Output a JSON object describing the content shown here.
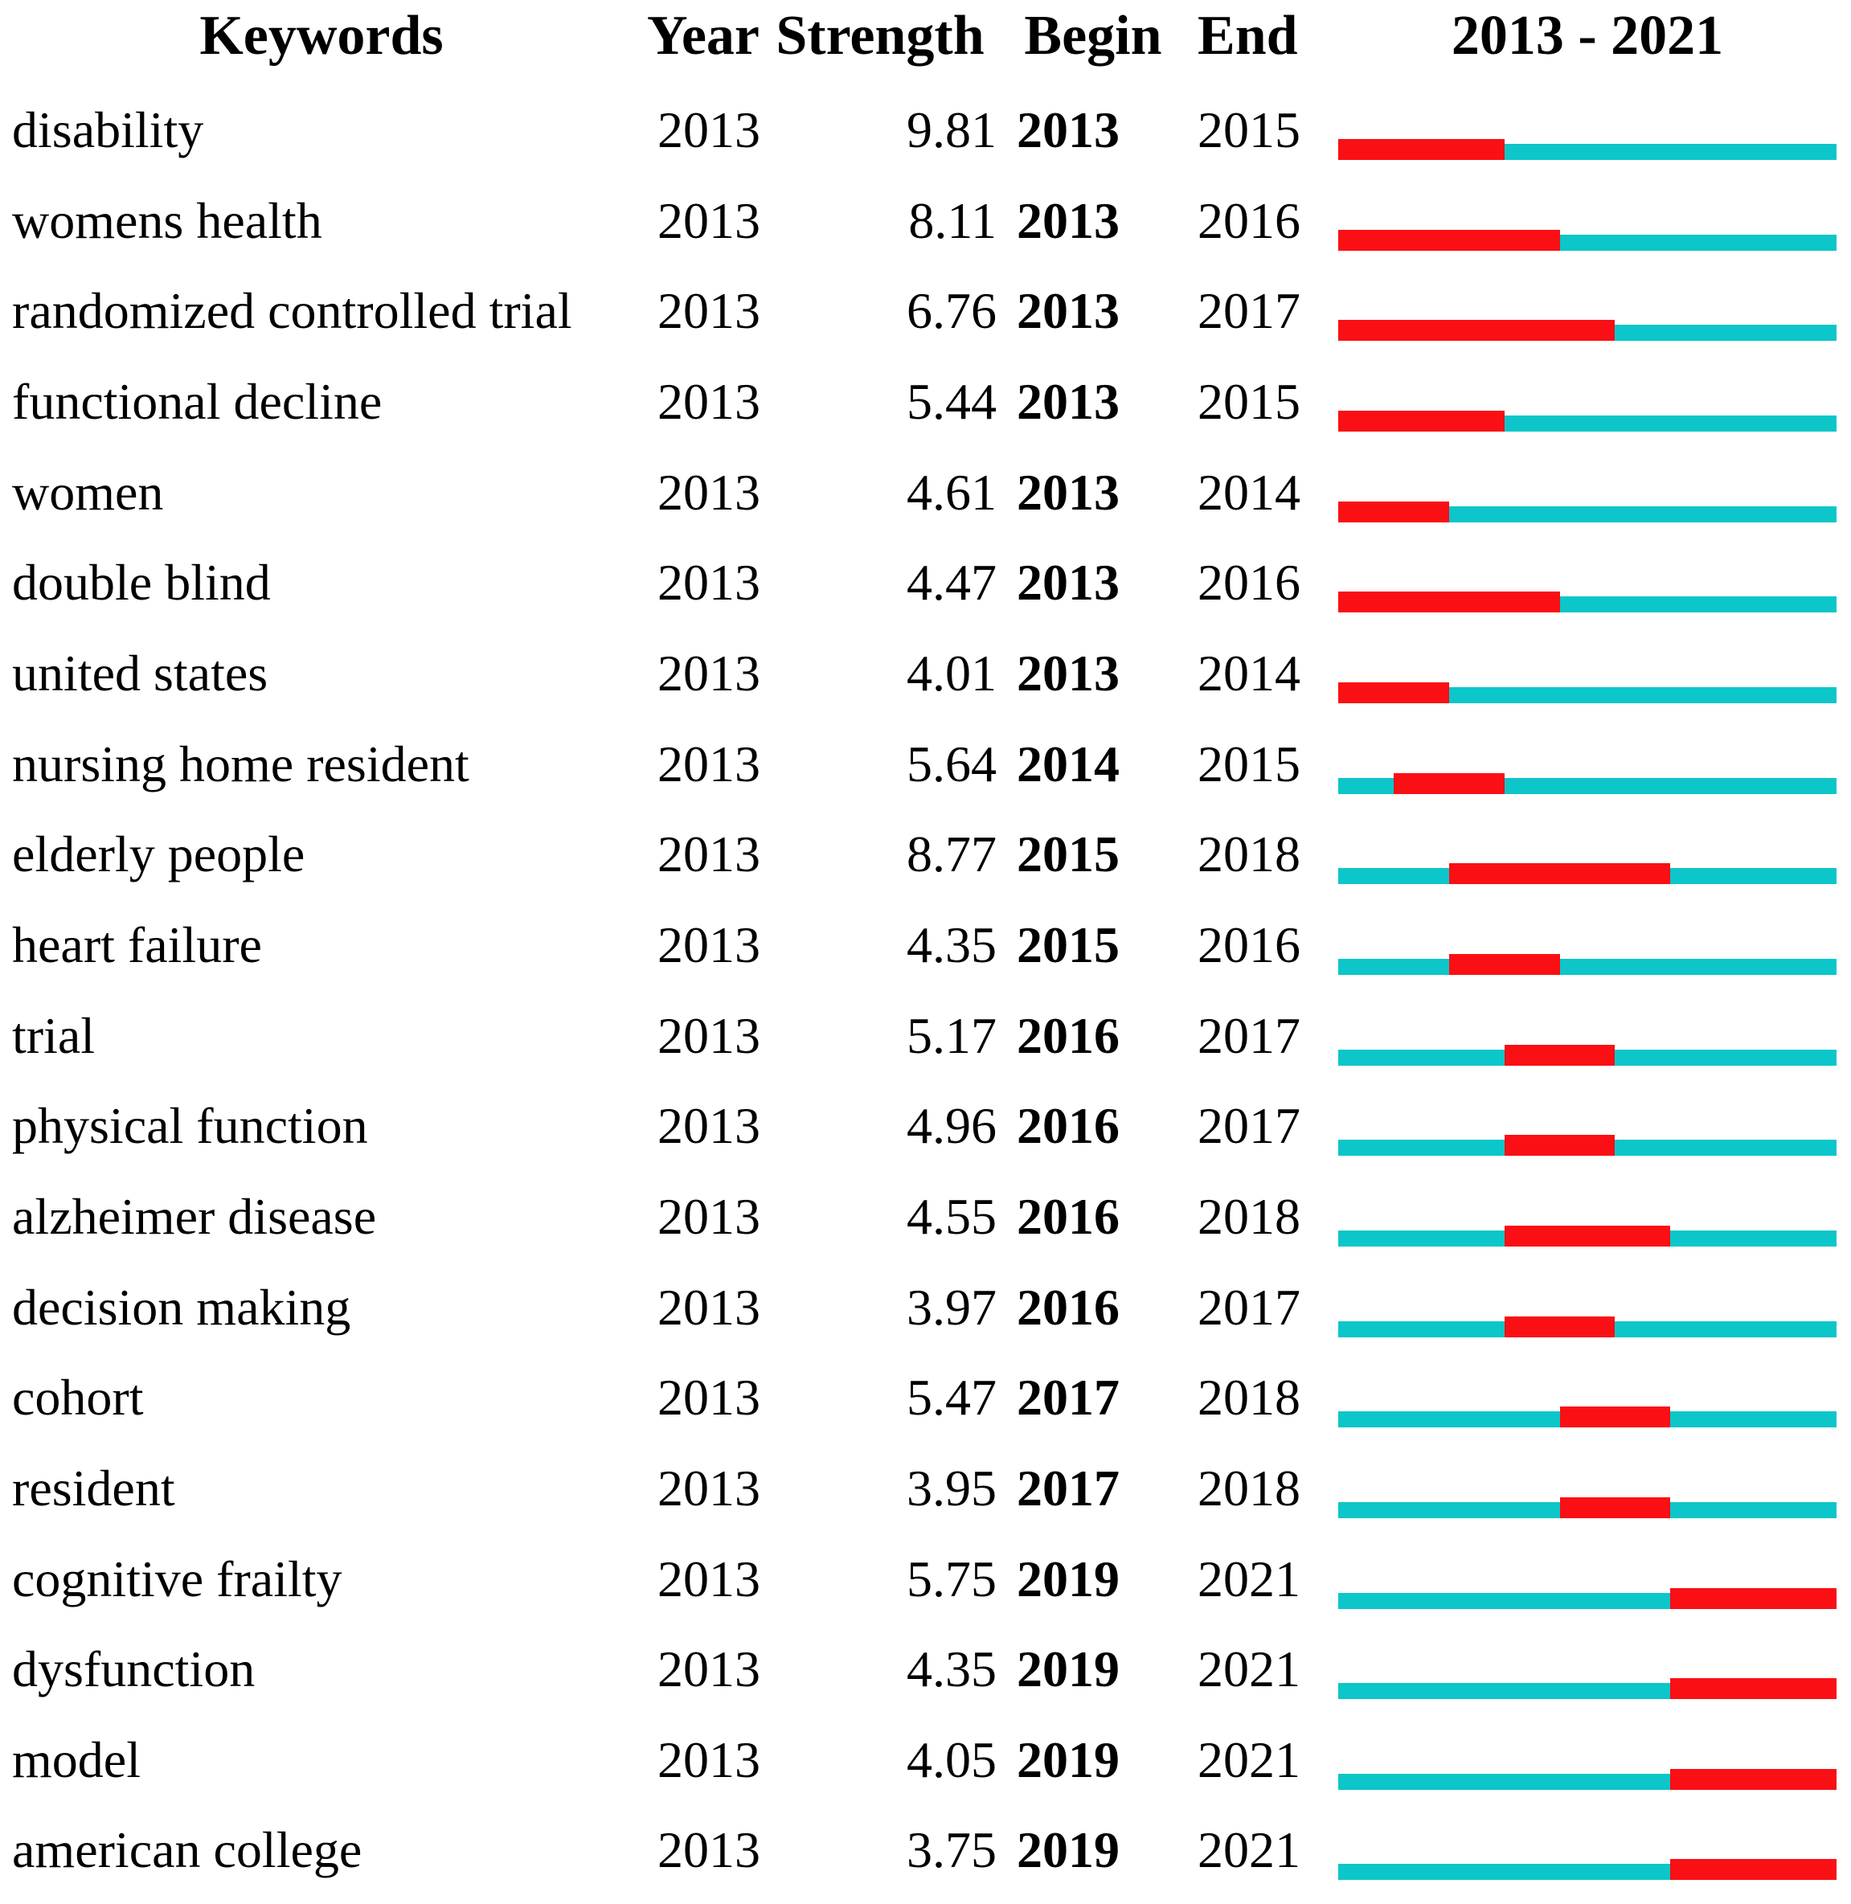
{
  "header": {
    "keywords": "Keywords",
    "year": "Year",
    "strength": "Strength",
    "begin": "Begin",
    "end": "End",
    "timeline": "2013 - 2021"
  },
  "colors": {
    "burst_red": "#fa0f14",
    "baseline_cyan": "#0cc6c9"
  },
  "chart_data": {
    "type": "table",
    "columns": [
      "Keywords",
      "Year",
      "Strength",
      "Begin",
      "End",
      "2013 - 2021"
    ],
    "timeline_range": [
      2013,
      2021
    ],
    "legend": {
      "burst_segment": "years of citation burst (red, Begin through End inclusive)",
      "baseline_segment": "non-burst years (cyan)"
    },
    "rows": [
      {
        "keyword": "disability",
        "year": "2013",
        "strength": "9.81",
        "begin": 2013,
        "end": 2015
      },
      {
        "keyword": "womens health",
        "year": "2013",
        "strength": "8.11",
        "begin": 2013,
        "end": 2016
      },
      {
        "keyword": "randomized controlled trial",
        "year": "2013",
        "strength": "6.76",
        "begin": 2013,
        "end": 2017
      },
      {
        "keyword": "functional decline",
        "year": "2013",
        "strength": "5.44",
        "begin": 2013,
        "end": 2015
      },
      {
        "keyword": "women",
        "year": "2013",
        "strength": "4.61",
        "begin": 2013,
        "end": 2014
      },
      {
        "keyword": "double blind",
        "year": "2013",
        "strength": "4.47",
        "begin": 2013,
        "end": 2016
      },
      {
        "keyword": "united states",
        "year": "2013",
        "strength": "4.01",
        "begin": 2013,
        "end": 2014
      },
      {
        "keyword": "nursing home resident",
        "year": "2013",
        "strength": "5.64",
        "begin": 2014,
        "end": 2015
      },
      {
        "keyword": "elderly people",
        "year": "2013",
        "strength": "8.77",
        "begin": 2015,
        "end": 2018
      },
      {
        "keyword": "heart failure",
        "year": "2013",
        "strength": "4.35",
        "begin": 2015,
        "end": 2016
      },
      {
        "keyword": "trial",
        "year": "2013",
        "strength": "5.17",
        "begin": 2016,
        "end": 2017
      },
      {
        "keyword": "physical function",
        "year": "2013",
        "strength": "4.96",
        "begin": 2016,
        "end": 2017
      },
      {
        "keyword": "alzheimer disease",
        "year": "2013",
        "strength": "4.55",
        "begin": 2016,
        "end": 2018
      },
      {
        "keyword": "decision making",
        "year": "2013",
        "strength": "3.97",
        "begin": 2016,
        "end": 2017
      },
      {
        "keyword": "cohort",
        "year": "2013",
        "strength": "5.47",
        "begin": 2017,
        "end": 2018
      },
      {
        "keyword": "resident",
        "year": "2013",
        "strength": "3.95",
        "begin": 2017,
        "end": 2018
      },
      {
        "keyword": "cognitive frailty",
        "year": "2013",
        "strength": "5.75",
        "begin": 2019,
        "end": 2021
      },
      {
        "keyword": "dysfunction",
        "year": "2013",
        "strength": "4.35",
        "begin": 2019,
        "end": 2021
      },
      {
        "keyword": "model",
        "year": "2013",
        "strength": "4.05",
        "begin": 2019,
        "end": 2021
      },
      {
        "keyword": "american college",
        "year": "2013",
        "strength": "3.75",
        "begin": 2019,
        "end": 2021
      }
    ]
  }
}
